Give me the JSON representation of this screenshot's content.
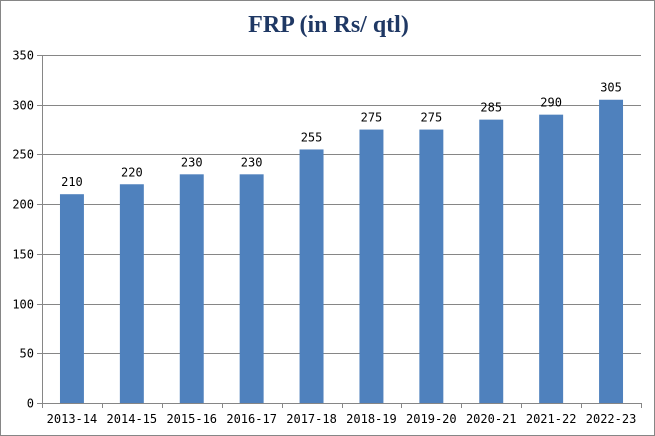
{
  "chart_data": {
    "type": "bar",
    "title": "FRP (in Rs/ qtl)",
    "xlabel": "",
    "ylabel": "",
    "categories": [
      "2013-14",
      "2014-15",
      "2015-16",
      "2016-17",
      "2017-18",
      "2018-19",
      "2019-20",
      "2020-21",
      "2021-22",
      "2022-23"
    ],
    "values": [
      210,
      220,
      230,
      230,
      255,
      275,
      275,
      285,
      290,
      305
    ],
    "data_labels": [
      "210",
      "220",
      "230",
      "230",
      "255",
      "275",
      "275",
      "285",
      "290",
      "305"
    ],
    "yticks": [
      "0",
      "50",
      "100",
      "150",
      "200",
      "250",
      "300",
      "350"
    ],
    "ylim": [
      0,
      350
    ],
    "grid": true,
    "legend": "none",
    "bar_color": "#4F81BD",
    "grid_color": "#868686",
    "title_color": "#1F3864"
  }
}
